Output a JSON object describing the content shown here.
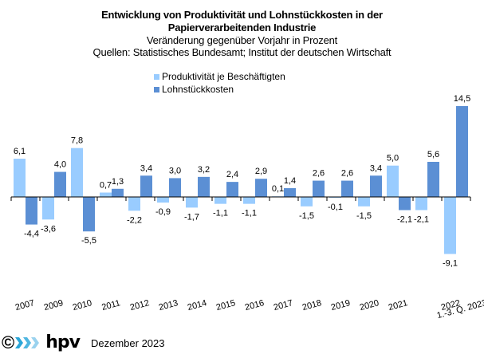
{
  "chart_data": {
    "type": "bar",
    "title": "Entwicklung von Produktivität und Lohnstückkosten  in der Papierverarbeitenden Industrie",
    "title_line1": "Entwicklung von Produktivität und Lohnstückkosten  in der",
    "title_line2": "Papierverarbeitenden Industrie",
    "subtitle": "Veränderung  gegenüber  Vorjahr  in Prozent",
    "source": "Quellen: Statistisches Bundesamt; Institut der deutschen Wirtschaft",
    "xlabel": "",
    "ylabel": "",
    "ylim": [
      -9.1,
      14.5
    ],
    "grid": false,
    "legend_position": "top-left",
    "categories": [
      "2007",
      "2009",
      "2010",
      "2011",
      "2012",
      "2013",
      "2014",
      "2015",
      "2016",
      "2017",
      "2018",
      "2019",
      "2020",
      "2021",
      "2022",
      "1.-3. Q. 2023"
    ],
    "series": [
      {
        "name": "Produktivität je Beschäftigten",
        "color": "#99CCFF",
        "values": [
          6.1,
          -3.6,
          7.8,
          0.7,
          -2.2,
          -0.9,
          -1.7,
          -1.1,
          -1.1,
          0.1,
          -1.5,
          -0.1,
          -1.5,
          5.0,
          -2.1,
          -9.1
        ],
        "labels": [
          "6,1",
          "-3,6",
          "7,8",
          "0,7",
          "-2,2",
          "-0,9",
          "-1,7",
          "-1,1",
          "-1,1",
          "0,1",
          "-1,5",
          "-0,1",
          "-1,5",
          "5,0",
          "-2,1",
          "-9,1"
        ]
      },
      {
        "name": "Lohnstückkosten",
        "color": "#5B8FD4",
        "values": [
          -4.4,
          4.0,
          -5.5,
          1.3,
          3.4,
          3.0,
          3.2,
          2.4,
          2.9,
          1.4,
          2.6,
          2.6,
          3.4,
          -2.1,
          5.6,
          14.5
        ],
        "labels": [
          "-4,4",
          "4,0",
          "-5,5",
          "1,3",
          "3,4",
          "3,0",
          "3,2",
          "2,4",
          "2,9",
          "1,4",
          "2,6",
          "2,6",
          "3,4",
          "-2,1",
          "5,6",
          "14,5"
        ]
      }
    ]
  },
  "footer": {
    "copyright_symbol": "©",
    "logo_text": "hpv",
    "date": "Dezember 2023"
  }
}
